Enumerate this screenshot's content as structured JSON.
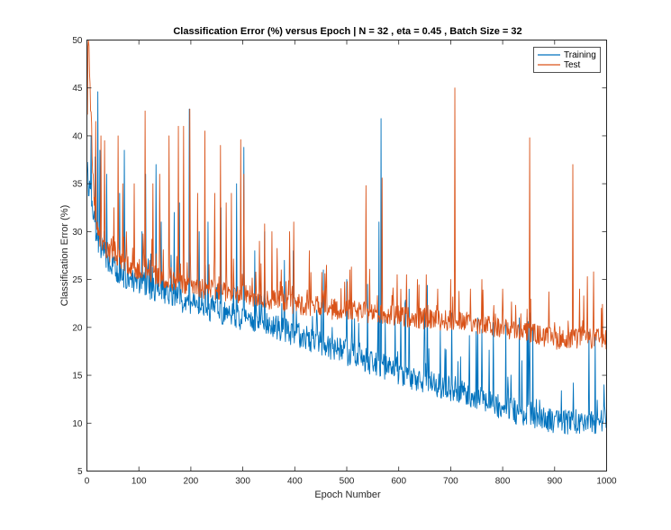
{
  "chart_data": {
    "type": "line",
    "title": "Classification Error (%) versus Epoch | N = 32 , eta = 0.45 , Batch Size = 32",
    "xlabel": "Epoch Number",
    "ylabel": "Classification Error (%)",
    "xlim": [
      0,
      1000
    ],
    "ylim": [
      5,
      50
    ],
    "xticks": [
      0,
      100,
      200,
      300,
      400,
      500,
      600,
      700,
      800,
      900,
      1000
    ],
    "yticks": [
      5,
      10,
      15,
      20,
      25,
      30,
      35,
      40,
      45,
      50
    ],
    "grid": false,
    "legend_position": "top-right",
    "series": [
      {
        "name": "Training",
        "color": "#0072BD",
        "points": [
          [
            1,
            36
          ],
          [
            3,
            35
          ],
          [
            5,
            34
          ],
          [
            8,
            33
          ],
          [
            12,
            31
          ],
          [
            16,
            30
          ],
          [
            22,
            29
          ],
          [
            30,
            28
          ],
          [
            40,
            27
          ],
          [
            55,
            26
          ],
          [
            70,
            25.5
          ],
          [
            90,
            25
          ],
          [
            110,
            24.5
          ],
          [
            130,
            24
          ],
          [
            150,
            23.5
          ],
          [
            175,
            23
          ],
          [
            200,
            22.5
          ],
          [
            225,
            22
          ],
          [
            250,
            21.8
          ],
          [
            275,
            21.3
          ],
          [
            300,
            21
          ],
          [
            325,
            20.6
          ],
          [
            350,
            20.2
          ],
          [
            375,
            19.8
          ],
          [
            400,
            19.3
          ],
          [
            425,
            18.8
          ],
          [
            450,
            18.3
          ],
          [
            475,
            17.8
          ],
          [
            500,
            17.3
          ],
          [
            525,
            16.8
          ],
          [
            550,
            16.3
          ],
          [
            575,
            15.8
          ],
          [
            600,
            15.3
          ],
          [
            625,
            14.8
          ],
          [
            650,
            14.4
          ],
          [
            675,
            14
          ],
          [
            700,
            13.6
          ],
          [
            725,
            13.1
          ],
          [
            750,
            12.6
          ],
          [
            775,
            12.1
          ],
          [
            800,
            11.6
          ],
          [
            825,
            11.1
          ],
          [
            850,
            10.7
          ],
          [
            875,
            10.4
          ],
          [
            900,
            10.2
          ],
          [
            925,
            10.1
          ],
          [
            950,
            10.2
          ],
          [
            975,
            10.1
          ],
          [
            1000,
            10.2
          ]
        ],
        "spikes": [
          [
            8,
            40
          ],
          [
            16,
            37.8
          ],
          [
            21,
            44.6
          ],
          [
            25,
            38.5
          ],
          [
            38,
            36
          ],
          [
            63,
            34
          ],
          [
            72,
            38.5
          ],
          [
            106,
            30
          ],
          [
            113,
            36
          ],
          [
            133,
            37
          ],
          [
            143,
            31
          ],
          [
            168,
            32
          ],
          [
            178,
            33
          ],
          [
            197,
            42.8
          ],
          [
            216,
            30
          ],
          [
            233,
            31
          ],
          [
            258,
            32.5
          ],
          [
            288,
            35
          ],
          [
            302,
            38.8
          ],
          [
            323,
            28
          ],
          [
            342,
            30
          ],
          [
            380,
            27
          ],
          [
            397,
            28
          ],
          [
            455,
            26
          ],
          [
            500,
            25
          ],
          [
            540,
            24.5
          ],
          [
            562,
            31
          ],
          [
            566,
            41.8
          ],
          [
            612,
            22.5
          ],
          [
            650,
            22
          ],
          [
            702,
            21.5
          ],
          [
            752,
            21
          ],
          [
            782,
            20.5
          ],
          [
            806,
            20.5
          ],
          [
            832,
            21
          ],
          [
            852,
            21.5
          ],
          [
            858,
            20
          ],
          [
            936,
            14.2
          ],
          [
            966,
            19.5
          ],
          [
            978,
            19
          ],
          [
            995,
            14
          ]
        ]
      },
      {
        "name": "Test",
        "color": "#D95319",
        "points": [
          [
            1,
            42
          ],
          [
            3,
            50
          ],
          [
            5,
            47
          ],
          [
            8,
            40
          ],
          [
            12,
            35
          ],
          [
            16,
            32
          ],
          [
            22,
            30
          ],
          [
            30,
            28.8
          ],
          [
            40,
            28
          ],
          [
            55,
            27.3
          ],
          [
            70,
            26.8
          ],
          [
            90,
            26.3
          ],
          [
            110,
            25.8
          ],
          [
            130,
            25.4
          ],
          [
            150,
            25
          ],
          [
            175,
            24.7
          ],
          [
            200,
            24.4
          ],
          [
            225,
            24.1
          ],
          [
            250,
            23.9
          ],
          [
            275,
            23.6
          ],
          [
            300,
            23.4
          ],
          [
            325,
            23.1
          ],
          [
            350,
            22.9
          ],
          [
            375,
            22.7
          ],
          [
            400,
            22.5
          ],
          [
            425,
            22.3
          ],
          [
            450,
            22.1
          ],
          [
            475,
            21.9
          ],
          [
            500,
            21.8
          ],
          [
            525,
            21.6
          ],
          [
            550,
            21.5
          ],
          [
            575,
            21.3
          ],
          [
            600,
            21.2
          ],
          [
            625,
            21
          ],
          [
            650,
            20.9
          ],
          [
            675,
            20.8
          ],
          [
            700,
            20.7
          ],
          [
            725,
            20.5
          ],
          [
            750,
            20.3
          ],
          [
            775,
            20.1
          ],
          [
            800,
            19.9
          ],
          [
            825,
            19.7
          ],
          [
            850,
            19.5
          ],
          [
            875,
            19.1
          ],
          [
            900,
            18.8
          ],
          [
            925,
            18.7
          ],
          [
            950,
            18.8
          ],
          [
            975,
            18.8
          ],
          [
            1000,
            18.8
          ]
        ],
        "spikes": [
          [
            8,
            42.5
          ],
          [
            17,
            41.5
          ],
          [
            27,
            40
          ],
          [
            34,
            39.5
          ],
          [
            52,
            32.5
          ],
          [
            60,
            40
          ],
          [
            69,
            35
          ],
          [
            91,
            35
          ],
          [
            112,
            42.6
          ],
          [
            127,
            35
          ],
          [
            140,
            36
          ],
          [
            158,
            40
          ],
          [
            176,
            41
          ],
          [
            186,
            41
          ],
          [
            198,
            42.8
          ],
          [
            213,
            34
          ],
          [
            227,
            40.5
          ],
          [
            246,
            34
          ],
          [
            257,
            39
          ],
          [
            268,
            33
          ],
          [
            278,
            34
          ],
          [
            296,
            39.6
          ],
          [
            302,
            36
          ],
          [
            332,
            29
          ],
          [
            342,
            30.8
          ],
          [
            356,
            30
          ],
          [
            374,
            26
          ],
          [
            390,
            30
          ],
          [
            398,
            31
          ],
          [
            428,
            28
          ],
          [
            461,
            26.5
          ],
          [
            506,
            26
          ],
          [
            537,
            34.8
          ],
          [
            568,
            35.6
          ],
          [
            597,
            25.5
          ],
          [
            615,
            25.5
          ],
          [
            636,
            25
          ],
          [
            653,
            25.5
          ],
          [
            675,
            24
          ],
          [
            700,
            25
          ],
          [
            708,
            45
          ],
          [
            738,
            24
          ],
          [
            760,
            25
          ],
          [
            800,
            24
          ],
          [
            852,
            39.8
          ],
          [
            935,
            37
          ],
          [
            948,
            24
          ],
          [
            963,
            25.3
          ],
          [
            975,
            25.8
          ],
          [
            990,
            22
          ]
        ]
      }
    ]
  }
}
